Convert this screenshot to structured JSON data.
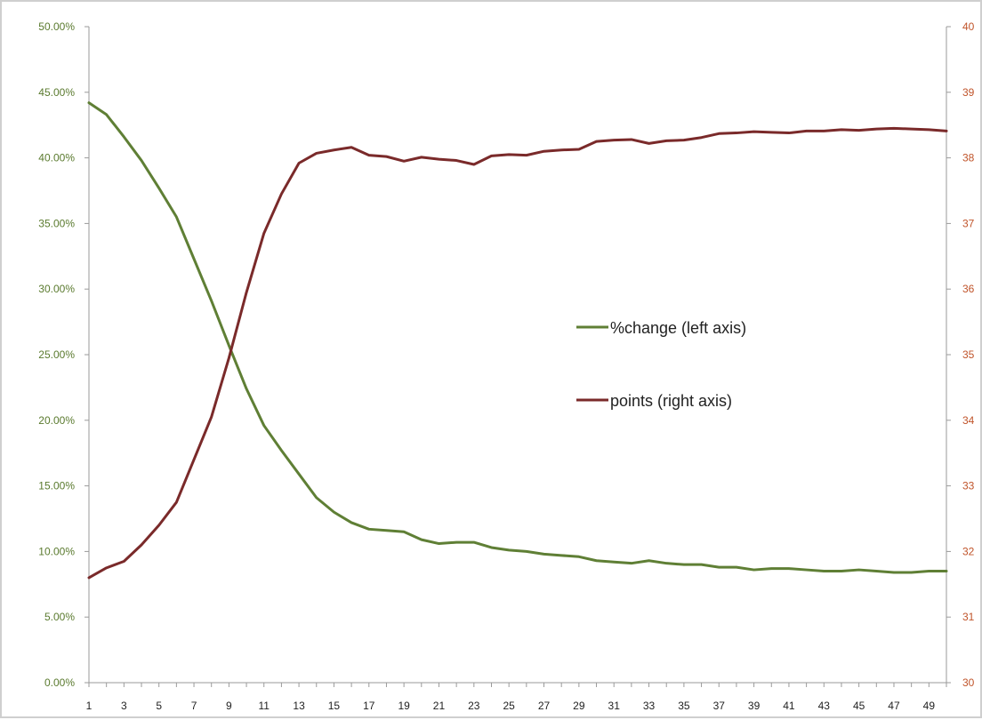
{
  "chart_data": {
    "type": "line",
    "x": [
      1,
      2,
      3,
      4,
      5,
      6,
      7,
      8,
      9,
      10,
      11,
      12,
      13,
      14,
      15,
      16,
      17,
      18,
      19,
      20,
      21,
      22,
      23,
      24,
      25,
      26,
      27,
      28,
      29,
      30,
      31,
      32,
      33,
      34,
      35,
      36,
      37,
      38,
      39,
      40,
      41,
      42,
      43,
      44,
      45,
      46,
      47,
      48,
      49,
      50
    ],
    "x_tick_labels": [
      "1",
      "3",
      "5",
      "7",
      "9",
      "11",
      "13",
      "15",
      "17",
      "19",
      "21",
      "23",
      "25",
      "27",
      "29",
      "31",
      "33",
      "35",
      "37",
      "39",
      "41",
      "43",
      "45",
      "47",
      "49"
    ],
    "y_left": {
      "range": [
        0,
        0.5
      ],
      "tick_labels": [
        "0.00%",
        "5.00%",
        "10.00%",
        "15.00%",
        "20.00%",
        "25.00%",
        "30.00%",
        "35.00%",
        "40.00%",
        "45.00%",
        "50.00%"
      ],
      "color": "#5a7a2e"
    },
    "y_right": {
      "range": [
        30,
        40
      ],
      "tick_labels": [
        "30",
        "31",
        "32",
        "33",
        "34",
        "35",
        "36",
        "37",
        "38",
        "39",
        "40"
      ],
      "color": "#c0542a"
    },
    "grid": false,
    "legend_position": "center-right",
    "series": [
      {
        "name": "%change (left axis)",
        "axis": "left",
        "color": "#5f7f35",
        "values": [
          0.442,
          0.433,
          0.416,
          0.398,
          0.377,
          0.355,
          0.323,
          0.291,
          0.257,
          0.224,
          0.196,
          0.177,
          0.159,
          0.141,
          0.13,
          0.122,
          0.117,
          0.116,
          0.115,
          0.109,
          0.106,
          0.107,
          0.107,
          0.103,
          0.101,
          0.1,
          0.098,
          0.097,
          0.096,
          0.093,
          0.092,
          0.091,
          0.093,
          0.091,
          0.09,
          0.09,
          0.088,
          0.088,
          0.086,
          0.087,
          0.087,
          0.086,
          0.085,
          0.085,
          0.086,
          0.085,
          0.084,
          0.084,
          0.085,
          0.085
        ]
      },
      {
        "name": "points (right axis)",
        "axis": "right",
        "color": "#7a2a2a",
        "values": [
          31.6,
          31.75,
          31.85,
          32.1,
          32.4,
          32.75,
          33.4,
          34.05,
          34.95,
          35.95,
          36.85,
          37.45,
          37.92,
          38.07,
          38.12,
          38.16,
          38.04,
          38.02,
          37.95,
          38.01,
          37.98,
          37.96,
          37.9,
          38.03,
          38.05,
          38.04,
          38.1,
          38.12,
          38.13,
          38.25,
          38.27,
          38.28,
          38.22,
          38.26,
          38.27,
          38.31,
          38.37,
          38.38,
          38.4,
          38.39,
          38.38,
          38.41,
          38.41,
          38.43,
          38.42,
          38.44,
          38.45,
          38.44,
          38.43,
          38.41
        ]
      }
    ]
  }
}
